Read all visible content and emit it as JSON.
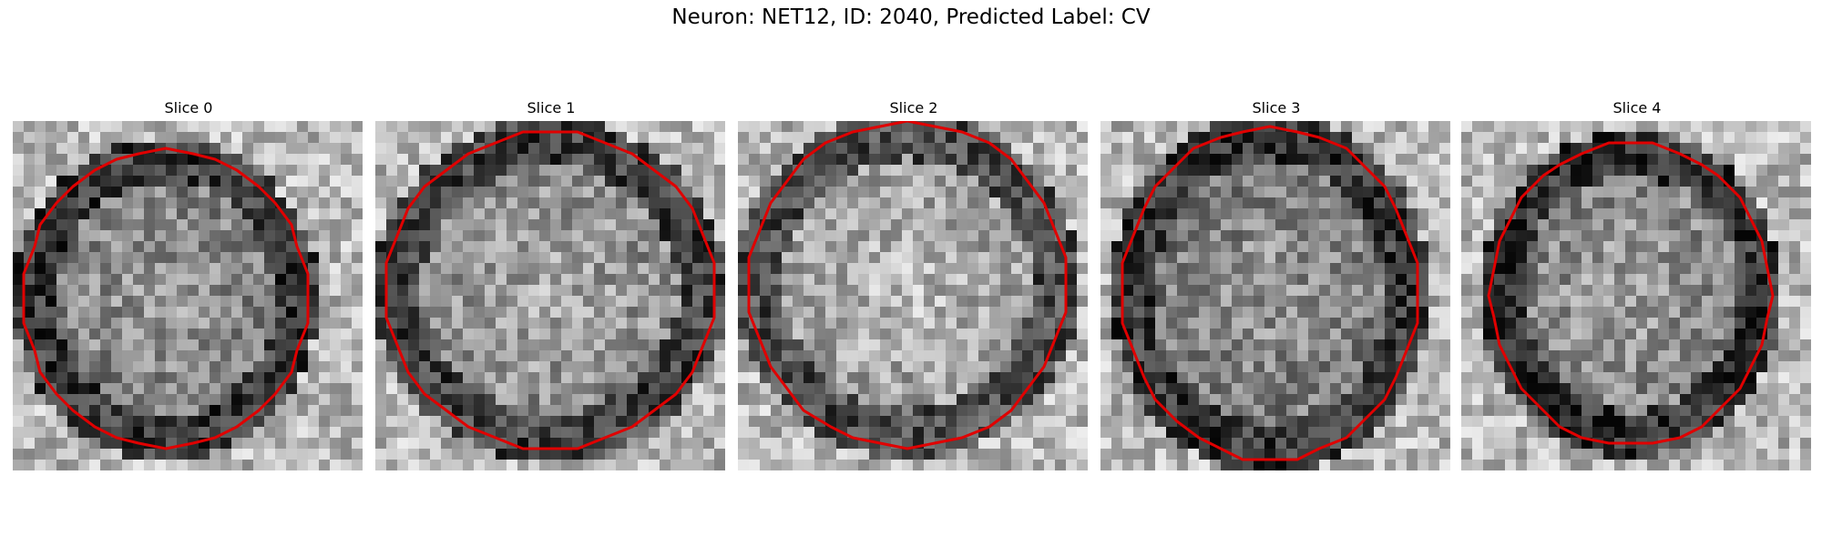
{
  "figure": {
    "title": "Neuron: NET12, ID: 2040, Predicted Label: CV"
  },
  "colors": {
    "background": "#ffffff",
    "contour": "#e00000",
    "colormap": "grayscale"
  },
  "panels": [
    {
      "title": "Slice 0"
    },
    {
      "title": "Slice 1"
    },
    {
      "title": "Slice 2"
    },
    {
      "title": "Slice 3"
    },
    {
      "title": "Slice 4"
    }
  ]
}
